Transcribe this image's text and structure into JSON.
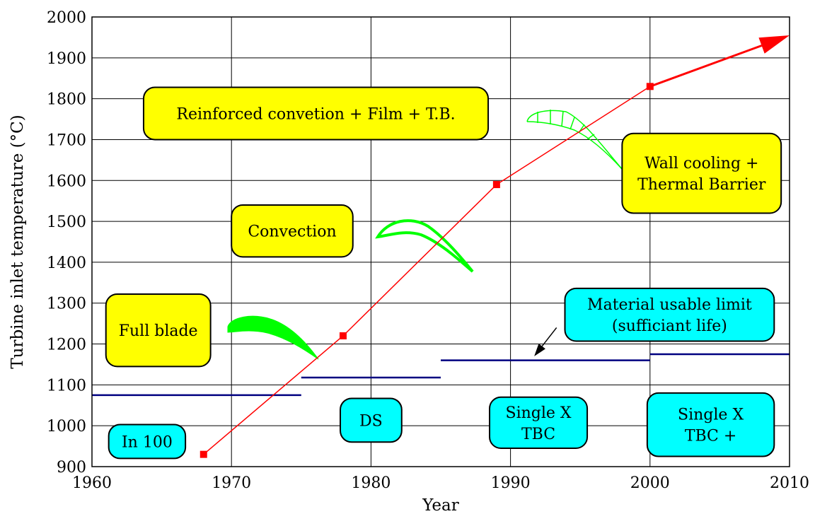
{
  "chart_data": {
    "type": "line",
    "title": "",
    "xlabel": "Year",
    "ylabel": "Turbine inlet temperature (°C)",
    "xlim": [
      1960,
      2010
    ],
    "ylim": [
      900,
      2000
    ],
    "x_ticks": [
      "1960",
      "1970",
      "1980",
      "1990",
      "2000",
      "2010"
    ],
    "y_ticks": [
      "900",
      "1000",
      "1100",
      "1200",
      "1300",
      "1400",
      "1500",
      "1600",
      "1700",
      "1800",
      "1900",
      "2000"
    ],
    "grid": true,
    "series": [
      {
        "type": "line",
        "color": "#ff0000",
        "points": [
          {
            "x": 1968,
            "y": 930
          },
          {
            "x": 1978,
            "y": 1220
          },
          {
            "x": 1989,
            "y": 1590
          },
          {
            "x": 2000,
            "y": 1830
          }
        ],
        "arrow_to": {
          "x": 2010,
          "y": 1955
        }
      }
    ],
    "material_limits": {
      "color": "#000080",
      "segments": [
        {
          "x0": 1960,
          "x1": 1975,
          "y": 1075
        },
        {
          "x0": 1975,
          "x1": 1985,
          "y": 1118
        },
        {
          "x0": 1985,
          "x1": 2000,
          "y": 1160
        },
        {
          "x0": 2000,
          "x1": 2010,
          "y": 1175
        }
      ]
    },
    "cooling_labels": [
      {
        "lines": [
          "Full blade"
        ],
        "x0": 1961,
        "x1": 1968.5,
        "y0": 1322,
        "y1": 1145
      },
      {
        "lines": [
          "Convection"
        ],
        "x0": 1970,
        "x1": 1978.7,
        "y0": 1540,
        "y1": 1413
      },
      {
        "lines": [
          "Reinforced convetion + Film + T.B."
        ],
        "x0": 1963.7,
        "x1": 1988.4,
        "y0": 1828,
        "y1": 1700
      },
      {
        "lines": [
          "Wall cooling +",
          "Thermal Barrier"
        ],
        "x0": 1998,
        "x1": 2009.4,
        "y0": 1715,
        "y1": 1520
      }
    ],
    "material_labels": [
      {
        "lines": [
          "In 100"
        ],
        "x0": 1961.2,
        "x1": 1966.7,
        "y0": 1003,
        "y1": 920
      },
      {
        "lines": [
          "DS"
        ],
        "x0": 1977.8,
        "x1": 1982.2,
        "y0": 1067,
        "y1": 960
      },
      {
        "lines": [
          "Single X",
          "TBC"
        ],
        "x0": 1988.5,
        "x1": 1995.5,
        "y0": 1070,
        "y1": 945
      },
      {
        "lines": [
          "Single X",
          "TBC +"
        ],
        "x0": 1999.8,
        "x1": 2008.9,
        "y0": 1080,
        "y1": 925
      },
      {
        "lines": [
          "Material usable limit",
          "(sufficiant life)"
        ],
        "x0": 1993.9,
        "x1": 2008.9,
        "y0": 1336,
        "y1": 1207
      }
    ],
    "annotation_arrow": {
      "from": {
        "x": 1993.3,
        "y": 1240
      },
      "to": {
        "x": 1991.7,
        "y": 1170
      }
    },
    "colors": {
      "cooling_box": "#ffff00",
      "material_box": "#00ffff",
      "blade": "#00ff00",
      "trend": "#ff0000",
      "limit": "#000080"
    }
  }
}
